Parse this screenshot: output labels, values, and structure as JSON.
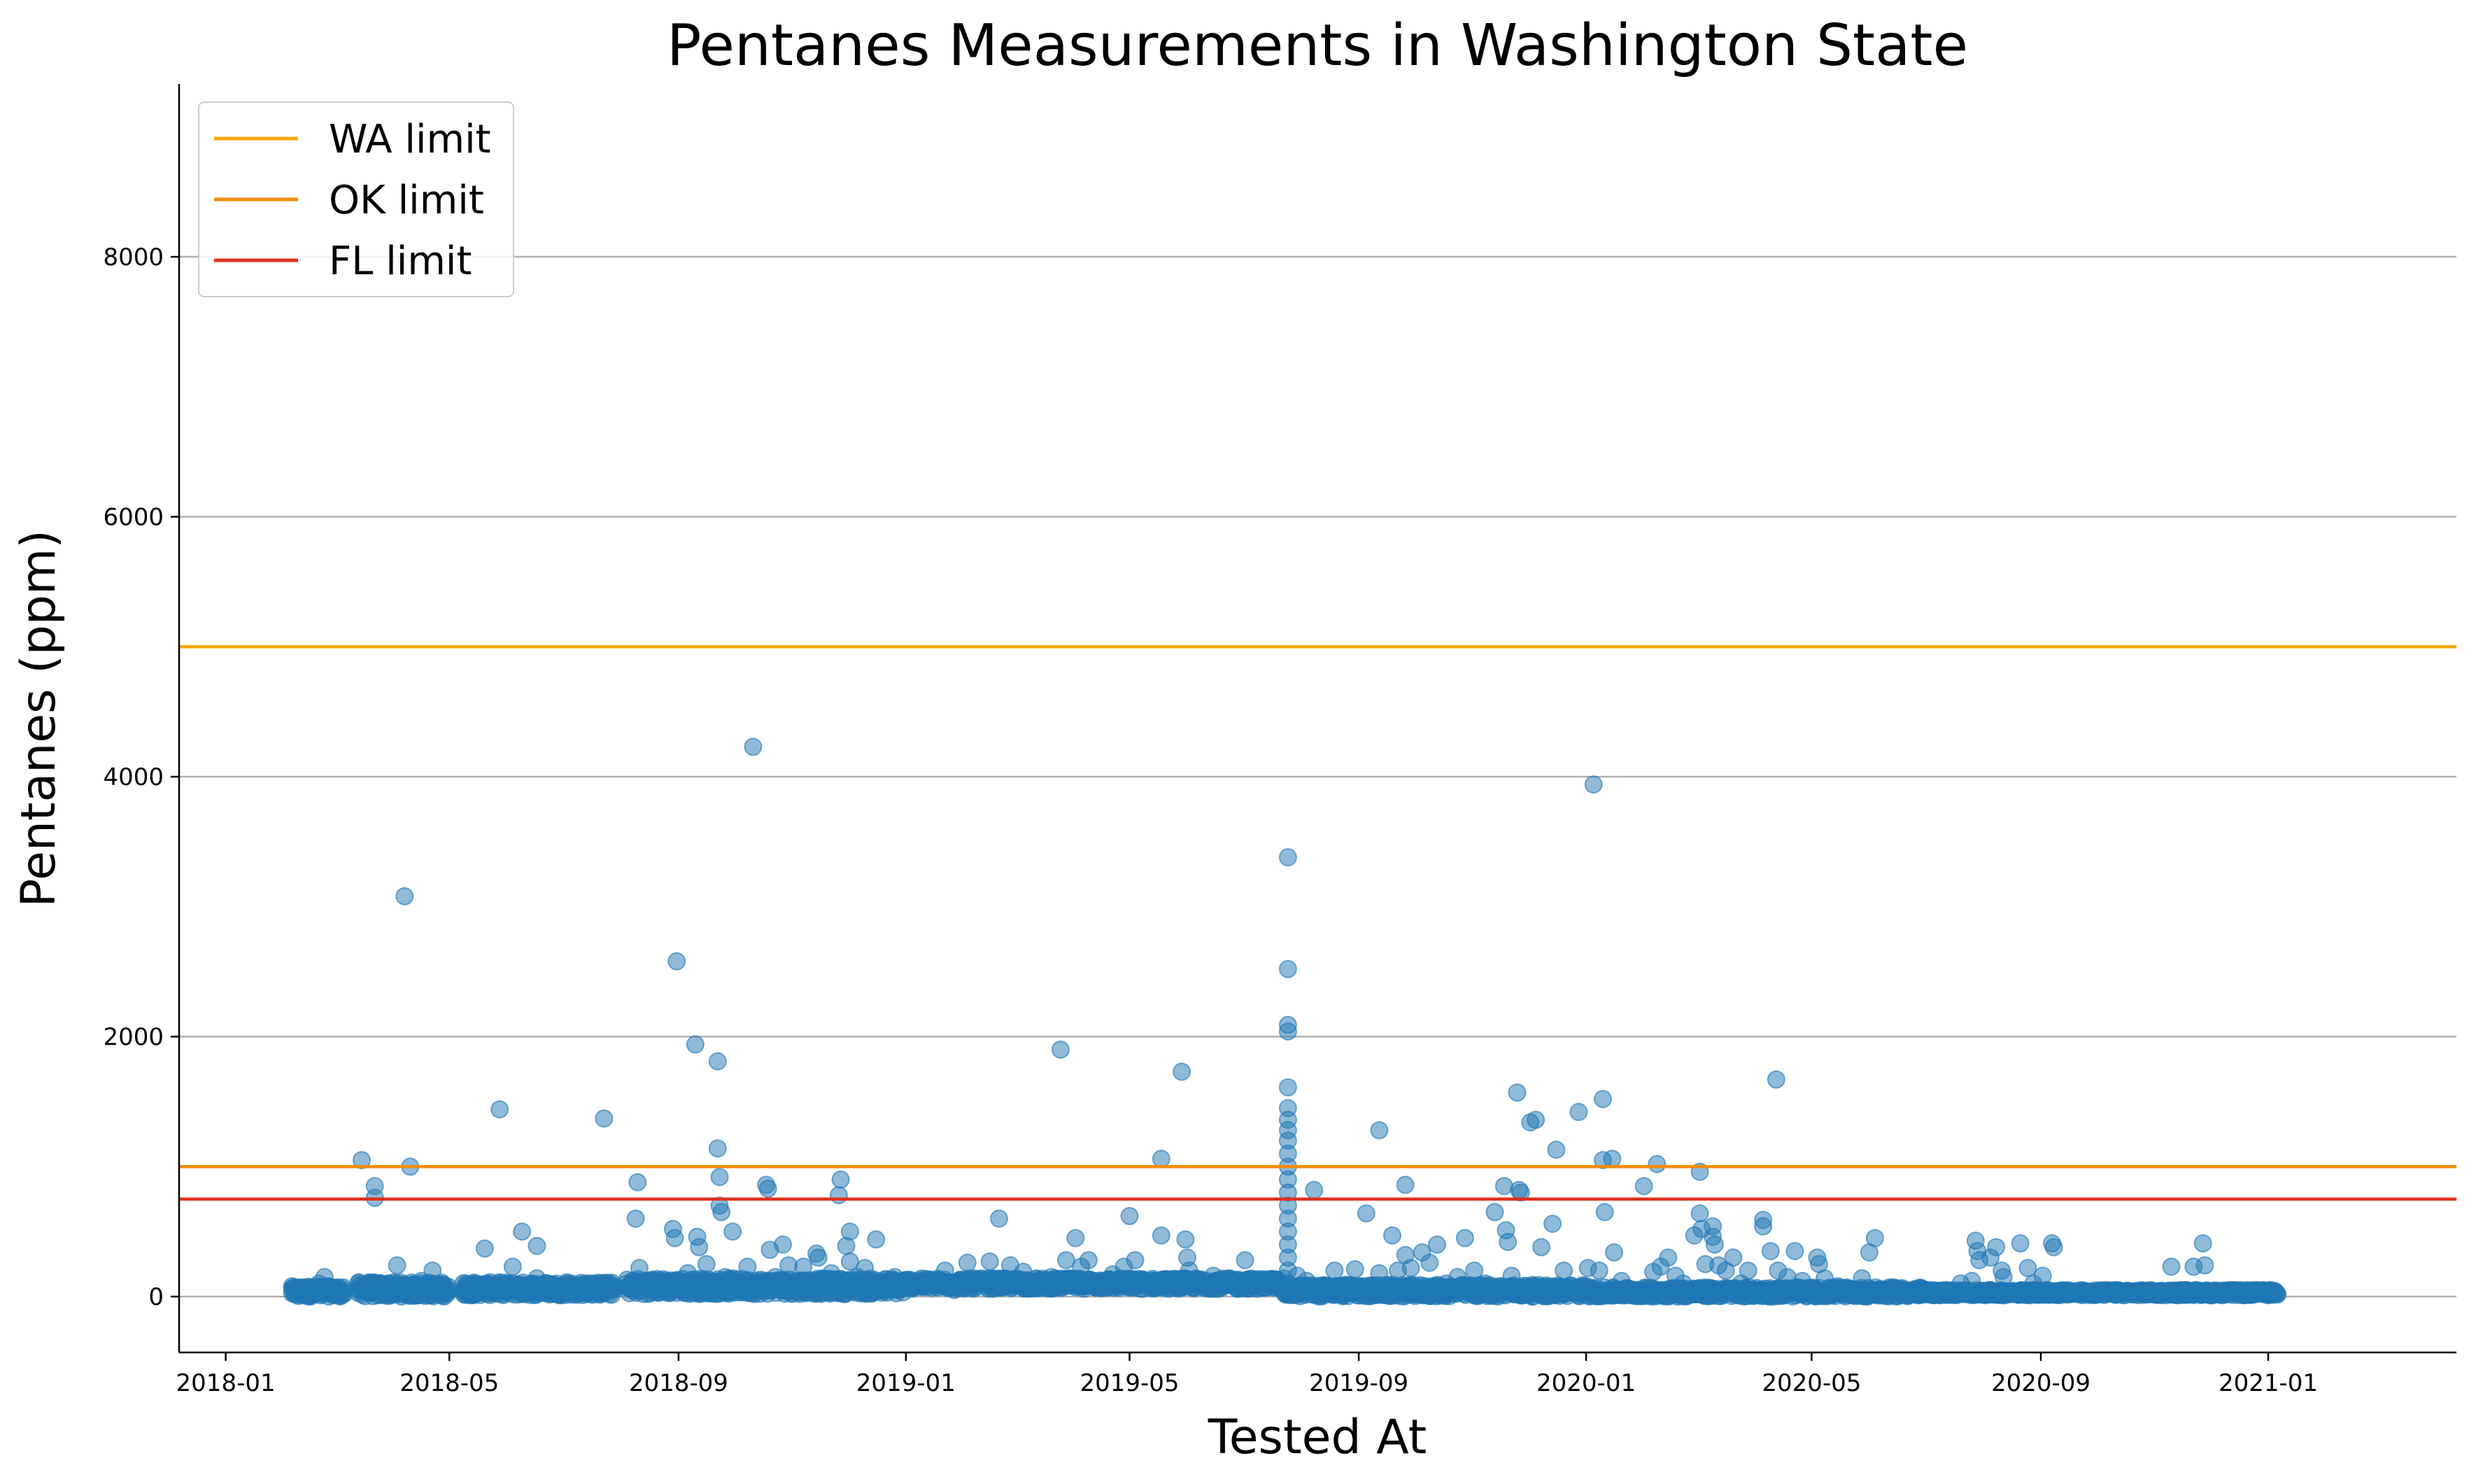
{
  "chart_data": {
    "type": "scatter",
    "title": "Pentanes Measurements in Washington State",
    "xlabel": "Tested At",
    "ylabel": "Pentanes (ppm)",
    "x_ticks": [
      "2018-01",
      "2018-05",
      "2018-09",
      "2019-01",
      "2019-05",
      "2019-09",
      "2020-01",
      "2020-05",
      "2020-09",
      "2021-01"
    ],
    "y_ticks": [
      0,
      2000,
      4000,
      6000,
      8000
    ],
    "xlim": [
      "2017-12-07",
      "2021-04-12"
    ],
    "ylim": [
      -430,
      9330
    ],
    "grid": "horizontal",
    "legend_position": "top-left",
    "point_color": "#1f77b4",
    "limits": [
      {
        "name": "WA limit",
        "value": 5000,
        "color": "#f5a800"
      },
      {
        "name": "OK limit",
        "value": 1000,
        "color": "#f28c00"
      },
      {
        "name": "FL limit",
        "value": 750,
        "color": "#e0301e"
      }
    ],
    "points": [
      [
        "2018-02-07",
        20
      ],
      [
        "2018-02-09",
        5
      ],
      [
        "2018-02-12",
        40
      ],
      [
        "2018-02-14",
        15
      ],
      [
        "2018-02-16",
        70
      ],
      [
        "2018-02-18",
        25
      ],
      [
        "2018-02-20",
        100
      ],
      [
        "2018-02-21",
        10
      ],
      [
        "2018-02-23",
        150
      ],
      [
        "2018-02-25",
        30
      ],
      [
        "2018-02-27",
        60
      ],
      [
        "2018-03-01",
        20
      ],
      [
        "2018-03-03",
        35
      ],
      [
        "2018-03-14",
        50
      ],
      [
        "2018-03-15",
        1050
      ],
      [
        "2018-03-17",
        90
      ],
      [
        "2018-03-19",
        110
      ],
      [
        "2018-03-20",
        30
      ],
      [
        "2018-03-22",
        850
      ],
      [
        "2018-03-22",
        760
      ],
      [
        "2018-03-24",
        80
      ],
      [
        "2018-03-26",
        40
      ],
      [
        "2018-03-29",
        100
      ],
      [
        "2018-04-01",
        20
      ],
      [
        "2018-04-03",
        240
      ],
      [
        "2018-04-05",
        60
      ],
      [
        "2018-04-07",
        3080
      ],
      [
        "2018-04-09",
        30
      ],
      [
        "2018-04-10",
        1000
      ],
      [
        "2018-04-12",
        90
      ],
      [
        "2018-04-14",
        10
      ],
      [
        "2018-04-16",
        120
      ],
      [
        "2018-04-18",
        40
      ],
      [
        "2018-04-20",
        60
      ],
      [
        "2018-04-22",
        200
      ],
      [
        "2018-04-25",
        20
      ],
      [
        "2018-04-28",
        30
      ],
      [
        "2018-05-10",
        100
      ],
      [
        "2018-05-12",
        60
      ],
      [
        "2018-05-15",
        20
      ],
      [
        "2018-05-20",
        370
      ],
      [
        "2018-05-28",
        1440
      ],
      [
        "2018-06-01",
        50
      ],
      [
        "2018-06-04",
        230
      ],
      [
        "2018-06-07",
        80
      ],
      [
        "2018-06-09",
        500
      ],
      [
        "2018-06-12",
        30
      ],
      [
        "2018-06-14",
        100
      ],
      [
        "2018-06-17",
        140
      ],
      [
        "2018-06-17",
        390
      ],
      [
        "2018-06-21",
        60
      ],
      [
        "2018-06-25",
        90
      ],
      [
        "2018-06-30",
        40
      ],
      [
        "2018-07-03",
        110
      ],
      [
        "2018-07-08",
        20
      ],
      [
        "2018-07-12",
        80
      ],
      [
        "2018-07-16",
        100
      ],
      [
        "2018-07-20",
        50
      ],
      [
        "2018-07-23",
        1370
      ],
      [
        "2018-07-26",
        100
      ],
      [
        "2018-08-06",
        80
      ],
      [
        "2018-08-09",
        600
      ],
      [
        "2018-08-10",
        880
      ],
      [
        "2018-08-11",
        220
      ],
      [
        "2018-08-13",
        50
      ],
      [
        "2018-08-16",
        20
      ],
      [
        "2018-08-19",
        90
      ],
      [
        "2018-08-22",
        60
      ],
      [
        "2018-08-25",
        120
      ],
      [
        "2018-08-29",
        520
      ],
      [
        "2018-08-30",
        450
      ],
      [
        "2018-08-31",
        2580
      ],
      [
        "2018-09-03",
        60
      ],
      [
        "2018-09-06",
        180
      ],
      [
        "2018-09-10",
        1940
      ],
      [
        "2018-09-11",
        460
      ],
      [
        "2018-09-12",
        380
      ],
      [
        "2018-09-14",
        120
      ],
      [
        "2018-09-16",
        250
      ],
      [
        "2018-09-19",
        80
      ],
      [
        "2018-09-22",
        1810
      ],
      [
        "2018-09-22",
        1140
      ],
      [
        "2018-09-23",
        920
      ],
      [
        "2018-09-23",
        700
      ],
      [
        "2018-09-24",
        650
      ],
      [
        "2018-09-26",
        150
      ],
      [
        "2018-09-30",
        500
      ],
      [
        "2018-10-04",
        100
      ],
      [
        "2018-10-08",
        230
      ],
      [
        "2018-10-11",
        4230
      ],
      [
        "2018-10-14",
        60
      ],
      [
        "2018-10-18",
        860
      ],
      [
        "2018-10-19",
        830
      ],
      [
        "2018-10-20",
        360
      ],
      [
        "2018-10-23",
        150
      ],
      [
        "2018-10-27",
        400
      ],
      [
        "2018-10-30",
        240
      ],
      [
        "2018-11-03",
        100
      ],
      [
        "2018-11-07",
        230
      ],
      [
        "2018-11-11",
        60
      ],
      [
        "2018-11-14",
        330
      ],
      [
        "2018-11-15",
        300
      ],
      [
        "2018-11-18",
        100
      ],
      [
        "2018-11-22",
        180
      ],
      [
        "2018-11-26",
        780
      ],
      [
        "2018-11-27",
        900
      ],
      [
        "2018-11-30",
        390
      ],
      [
        "2018-12-02",
        270
      ],
      [
        "2018-12-02",
        500
      ],
      [
        "2018-12-06",
        150
      ],
      [
        "2018-12-10",
        220
      ],
      [
        "2018-12-14",
        80
      ],
      [
        "2018-12-16",
        440
      ],
      [
        "2018-12-19",
        30
      ],
      [
        "2018-12-22",
        100
      ],
      [
        "2018-12-26",
        150
      ],
      [
        "2018-12-30",
        60
      ],
      [
        "2019-01-10",
        100
      ],
      [
        "2019-01-22",
        200
      ],
      [
        "2019-01-27",
        50
      ],
      [
        "2019-02-03",
        260
      ],
      [
        "2019-02-10",
        100
      ],
      [
        "2019-02-15",
        270
      ],
      [
        "2019-02-20",
        600
      ],
      [
        "2019-02-26",
        240
      ],
      [
        "2019-03-05",
        190
      ],
      [
        "2019-03-12",
        100
      ],
      [
        "2019-03-20",
        150
      ],
      [
        "2019-03-25",
        1900
      ],
      [
        "2019-03-28",
        280
      ],
      [
        "2019-04-02",
        450
      ],
      [
        "2019-04-05",
        230
      ],
      [
        "2019-04-09",
        280
      ],
      [
        "2019-04-15",
        120
      ],
      [
        "2019-04-22",
        170
      ],
      [
        "2019-04-28",
        230
      ],
      [
        "2019-05-01",
        620
      ],
      [
        "2019-05-04",
        280
      ],
      [
        "2019-05-08",
        60
      ],
      [
        "2019-05-13",
        100
      ],
      [
        "2019-05-18",
        1060
      ],
      [
        "2019-05-18",
        470
      ],
      [
        "2019-05-23",
        100
      ],
      [
        "2019-05-29",
        1730
      ],
      [
        "2019-05-31",
        440
      ],
      [
        "2019-06-01",
        300
      ],
      [
        "2019-06-02",
        200
      ],
      [
        "2019-06-08",
        120
      ],
      [
        "2019-06-15",
        160
      ],
      [
        "2019-06-22",
        90
      ],
      [
        "2019-06-28",
        60
      ],
      [
        "2019-07-02",
        280
      ],
      [
        "2019-07-05",
        100
      ],
      [
        "2019-07-10",
        120
      ],
      [
        "2019-07-15",
        100
      ],
      [
        "2019-07-25",
        3380
      ],
      [
        "2019-07-25",
        2520
      ],
      [
        "2019-07-25",
        2090
      ],
      [
        "2019-07-25",
        2040
      ],
      [
        "2019-07-25",
        1610
      ],
      [
        "2019-07-25",
        1450
      ],
      [
        "2019-07-25",
        1360
      ],
      [
        "2019-07-25",
        1280
      ],
      [
        "2019-07-25",
        1200
      ],
      [
        "2019-07-25",
        1100
      ],
      [
        "2019-07-25",
        1000
      ],
      [
        "2019-07-25",
        900
      ],
      [
        "2019-07-25",
        800
      ],
      [
        "2019-07-25",
        700
      ],
      [
        "2019-07-25",
        600
      ],
      [
        "2019-07-25",
        500
      ],
      [
        "2019-07-25",
        400
      ],
      [
        "2019-07-25",
        300
      ],
      [
        "2019-07-25",
        200
      ],
      [
        "2019-07-25",
        100
      ],
      [
        "2019-07-30",
        160
      ],
      [
        "2019-08-04",
        120
      ],
      [
        "2019-08-08",
        820
      ],
      [
        "2019-08-13",
        80
      ],
      [
        "2019-08-19",
        200
      ],
      [
        "2019-08-25",
        90
      ],
      [
        "2019-08-30",
        210
      ],
      [
        "2019-09-05",
        640
      ],
      [
        "2019-09-12",
        1280
      ],
      [
        "2019-09-12",
        180
      ],
      [
        "2019-09-19",
        470
      ],
      [
        "2019-09-22",
        200
      ],
      [
        "2019-09-26",
        860
      ],
      [
        "2019-09-26",
        320
      ],
      [
        "2019-09-29",
        220
      ],
      [
        "2019-10-05",
        340
      ],
      [
        "2019-10-09",
        260
      ],
      [
        "2019-10-13",
        400
      ],
      [
        "2019-10-18",
        100
      ],
      [
        "2019-10-24",
        150
      ],
      [
        "2019-10-28",
        450
      ],
      [
        "2019-11-02",
        200
      ],
      [
        "2019-11-08",
        100
      ],
      [
        "2019-11-13",
        650
      ],
      [
        "2019-11-18",
        850
      ],
      [
        "2019-11-19",
        510
      ],
      [
        "2019-11-20",
        420
      ],
      [
        "2019-11-22",
        160
      ],
      [
        "2019-11-25",
        1570
      ],
      [
        "2019-11-26",
        820
      ],
      [
        "2019-11-27",
        800
      ],
      [
        "2019-12-02",
        1340
      ],
      [
        "2019-12-05",
        1360
      ],
      [
        "2019-12-08",
        380
      ],
      [
        "2019-12-14",
        560
      ],
      [
        "2019-12-16",
        1130
      ],
      [
        "2019-12-20",
        200
      ],
      [
        "2019-12-28",
        1420
      ],
      [
        "2020-01-02",
        220
      ],
      [
        "2020-01-05",
        3940
      ],
      [
        "2020-01-08",
        200
      ],
      [
        "2020-01-10",
        1520
      ],
      [
        "2020-01-10",
        1050
      ],
      [
        "2020-01-11",
        650
      ],
      [
        "2020-01-15",
        1060
      ],
      [
        "2020-01-16",
        340
      ],
      [
        "2020-01-20",
        120
      ],
      [
        "2020-01-25",
        50
      ],
      [
        "2020-02-01",
        850
      ],
      [
        "2020-02-06",
        190
      ],
      [
        "2020-02-08",
        1020
      ],
      [
        "2020-02-10",
        230
      ],
      [
        "2020-02-14",
        300
      ],
      [
        "2020-02-18",
        160
      ],
      [
        "2020-02-22",
        100
      ],
      [
        "2020-02-28",
        470
      ],
      [
        "2020-03-02",
        960
      ],
      [
        "2020-03-02",
        640
      ],
      [
        "2020-03-03",
        520
      ],
      [
        "2020-03-05",
        250
      ],
      [
        "2020-03-09",
        540
      ],
      [
        "2020-03-09",
        460
      ],
      [
        "2020-03-10",
        400
      ],
      [
        "2020-03-12",
        240
      ],
      [
        "2020-03-16",
        200
      ],
      [
        "2020-03-20",
        300
      ],
      [
        "2020-03-24",
        100
      ],
      [
        "2020-03-28",
        200
      ],
      [
        "2020-04-05",
        590
      ],
      [
        "2020-04-05",
        540
      ],
      [
        "2020-04-09",
        350
      ],
      [
        "2020-04-12",
        1670
      ],
      [
        "2020-04-13",
        200
      ],
      [
        "2020-04-18",
        150
      ],
      [
        "2020-04-22",
        350
      ],
      [
        "2020-04-26",
        120
      ],
      [
        "2020-05-04",
        300
      ],
      [
        "2020-05-05",
        250
      ],
      [
        "2020-05-08",
        140
      ],
      [
        "2020-05-15",
        80
      ],
      [
        "2020-05-22",
        30
      ],
      [
        "2020-05-28",
        140
      ],
      [
        "2020-06-01",
        340
      ],
      [
        "2020-06-04",
        450
      ],
      [
        "2020-06-12",
        40
      ],
      [
        "2020-06-25",
        40
      ],
      [
        "2020-07-06",
        20
      ],
      [
        "2020-07-12",
        50
      ],
      [
        "2020-07-20",
        100
      ],
      [
        "2020-07-26",
        120
      ],
      [
        "2020-07-28",
        430
      ],
      [
        "2020-07-29",
        350
      ],
      [
        "2020-07-30",
        280
      ],
      [
        "2020-08-05",
        300
      ],
      [
        "2020-08-08",
        380
      ],
      [
        "2020-08-11",
        200
      ],
      [
        "2020-08-12",
        150
      ],
      [
        "2020-08-21",
        410
      ],
      [
        "2020-08-25",
        220
      ],
      [
        "2020-08-28",
        100
      ],
      [
        "2020-09-02",
        160
      ],
      [
        "2020-09-07",
        410
      ],
      [
        "2020-09-08",
        380
      ],
      [
        "2020-09-20",
        40
      ],
      [
        "2020-10-10",
        30
      ],
      [
        "2020-10-28",
        40
      ],
      [
        "2020-11-10",
        230
      ],
      [
        "2020-11-18",
        50
      ],
      [
        "2020-11-22",
        230
      ],
      [
        "2020-11-27",
        410
      ],
      [
        "2020-11-28",
        240
      ],
      [
        "2020-12-05",
        40
      ],
      [
        "2020-12-15",
        30
      ],
      [
        "2020-12-24",
        40
      ]
    ],
    "dense_clusters": [
      {
        "start": "2018-02-05",
        "end": "2018-03-05",
        "min": 0,
        "max": 80
      },
      {
        "start": "2018-03-13",
        "end": "2018-04-30",
        "min": 0,
        "max": 110
      },
      {
        "start": "2018-05-08",
        "end": "2018-07-28",
        "min": 10,
        "max": 110
      },
      {
        "start": "2018-08-04",
        "end": "2018-12-31",
        "min": 20,
        "max": 140
      },
      {
        "start": "2019-01-01",
        "end": "2019-07-22",
        "min": 60,
        "max": 140
      },
      {
        "start": "2019-07-23",
        "end": "2019-12-31",
        "min": 0,
        "max": 90
      },
      {
        "start": "2020-01-01",
        "end": "2020-06-30",
        "min": 0,
        "max": 70
      },
      {
        "start": "2020-07-01",
        "end": "2021-01-05",
        "min": 10,
        "max": 50
      }
    ]
  }
}
